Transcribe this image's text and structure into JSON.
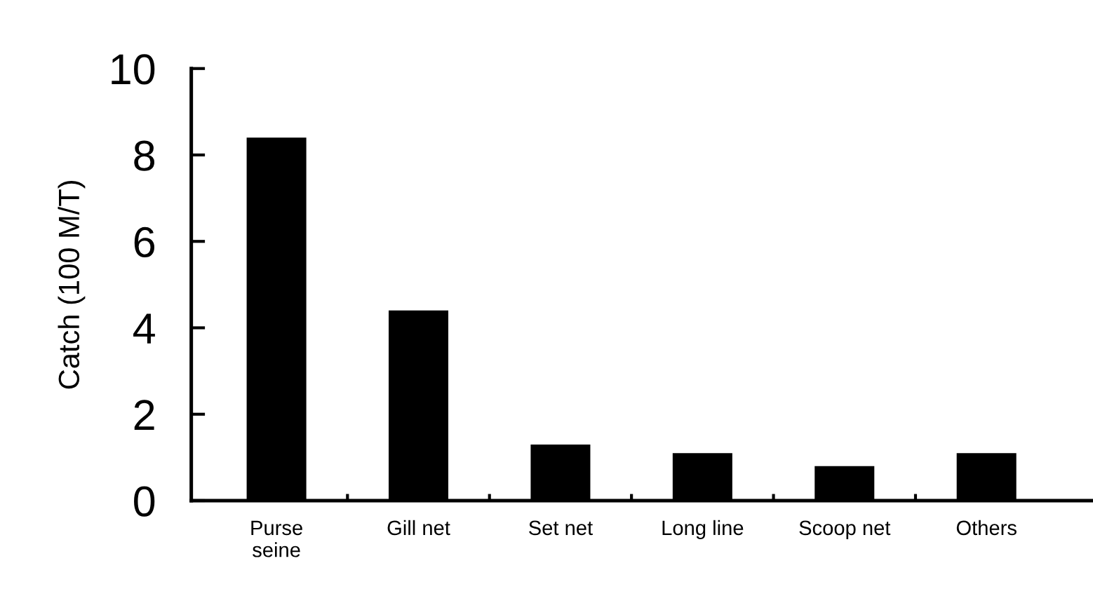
{
  "chart_data": {
    "type": "bar",
    "ylabel": "Catch (100 M/T)",
    "categories": [
      "Purse\nseine",
      "Gill net",
      "Set net",
      "Long line",
      "Scoop net",
      "Others"
    ],
    "values": [
      8.4,
      4.4,
      1.3,
      1.1,
      0.8,
      1.1
    ],
    "color": "#000000",
    "ylim": [
      0,
      10
    ],
    "yticks": [
      0,
      2,
      4,
      6,
      8,
      10
    ],
    "grid": false
  }
}
